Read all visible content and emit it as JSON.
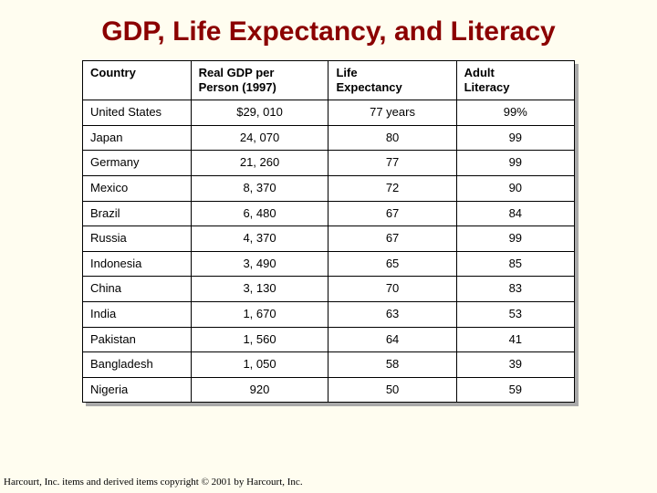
{
  "title": "GDP, Life Expectancy, and Literacy",
  "columns": [
    "Country",
    "Real GDP per Person (1997)",
    "Life Expectancy",
    "Adult Literacy"
  ],
  "col0label1": "Real GDP per",
  "col0label2": "Person (1997)",
  "col1label1": "Life",
  "col1label2": "Expectancy",
  "col2label1": "Adult",
  "col2label2": "Literacy",
  "rows": [
    {
      "country": "United States",
      "gdp": "$29, 010",
      "life": "77 years",
      "lit": "99%"
    },
    {
      "country": "Japan",
      "gdp": "24, 070",
      "life": "80",
      "lit": "99"
    },
    {
      "country": "Germany",
      "gdp": "21, 260",
      "life": "77",
      "lit": "99"
    },
    {
      "country": "Mexico",
      "gdp": "8, 370",
      "life": "72",
      "lit": "90"
    },
    {
      "country": "Brazil",
      "gdp": "6, 480",
      "life": "67",
      "lit": "84"
    },
    {
      "country": "Russia",
      "gdp": "4, 370",
      "life": "67",
      "lit": "99"
    },
    {
      "country": "Indonesia",
      "gdp": "3, 490",
      "life": "65",
      "lit": "85"
    },
    {
      "country": "China",
      "gdp": "3, 130",
      "life": "70",
      "lit": "83"
    },
    {
      "country": "India",
      "gdp": "1, 670",
      "life": "63",
      "lit": "53"
    },
    {
      "country": "Pakistan",
      "gdp": "1, 560",
      "life": "64",
      "lit": "41"
    },
    {
      "country": "Bangladesh",
      "gdp": "1, 050",
      "life": "58",
      "lit": "39"
    },
    {
      "country": "Nigeria",
      "gdp": "920",
      "life": "50",
      "lit": "59"
    }
  ],
  "footer": "Harcourt, Inc. items and derived items copyright © 2001 by Harcourt, Inc.",
  "colors": {
    "background": "#fffdf0",
    "title": "#8b0000",
    "border": "#000000",
    "shadow": "#a9a9a9",
    "table_bg": "#ffffff"
  },
  "fonts": {
    "title_size_pt": 22,
    "body_size_pt": 10,
    "footer_size_pt": 8
  }
}
